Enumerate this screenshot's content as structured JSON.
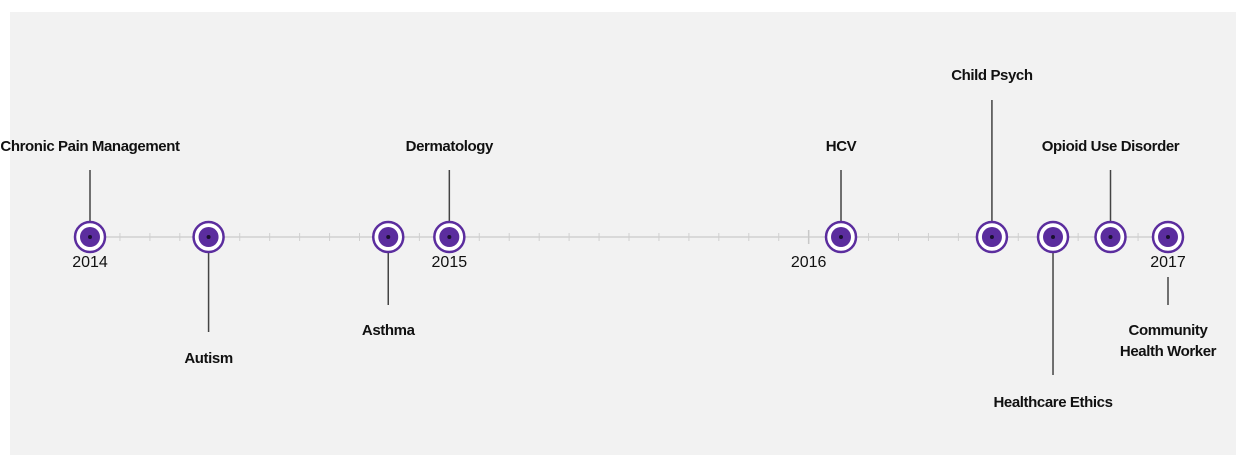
{
  "chart_data": {
    "type": "timeline",
    "events": [
      {
        "label": "Chronic Pain Management",
        "x": 2014.0
      },
      {
        "label": "Autism",
        "x": 2014.33
      },
      {
        "label": "Asthma",
        "x": 2014.83
      },
      {
        "label": "Dermatology",
        "x": 2015.0
      },
      {
        "label": "HCV",
        "x": 2016.09
      },
      {
        "label": "Child Psych",
        "x": 2016.51
      },
      {
        "label": "Healthcare Ethics",
        "x": 2016.68
      },
      {
        "label": "Opioid Use Disorder",
        "x": 2016.84
      },
      {
        "label": "Community Health Worker",
        "x": 2017.0
      }
    ],
    "xlim": [
      2014,
      2017
    ],
    "xticks": [
      2014,
      2015,
      2016,
      2017
    ],
    "color": "#5b2d9e"
  }
}
